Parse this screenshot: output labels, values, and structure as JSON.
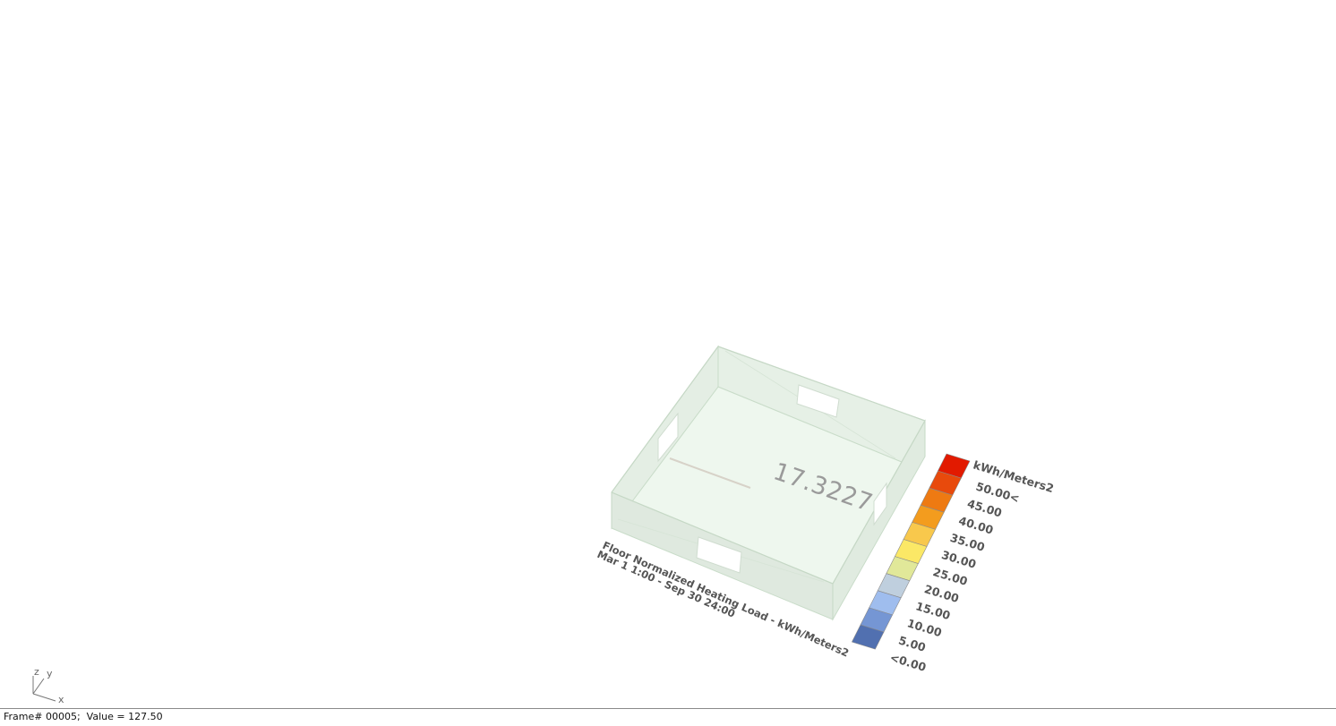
{
  "viewport": {
    "zone_value": "17.3227",
    "caption": {
      "title": "Floor Normalized Heating Load  - kWh/Meters2",
      "period": "Mar 1 1:00 - Sep 30 24:00"
    },
    "legend": {
      "unit": "kWh/Meters2",
      "labels": [
        "50.00<",
        "45.00",
        "40.00",
        "35.00",
        "30.00",
        "25.00",
        "20.00",
        "15.00",
        "10.00",
        "5.00",
        "<0.00"
      ],
      "colors_top_to_bottom": [
        "#e21a00",
        "#e84a0c",
        "#ee7a12",
        "#f39c1e",
        "#f8c84c",
        "#fbe866",
        "#e1e899",
        "#bfcfde",
        "#9fbdee",
        "#7596d4",
        "#5170b0"
      ]
    },
    "axis_icon": {
      "z": "z",
      "y": "y",
      "x": "x"
    }
  },
  "status_bar": {
    "text": "Frame# 00005;  Value = 127.50"
  }
}
